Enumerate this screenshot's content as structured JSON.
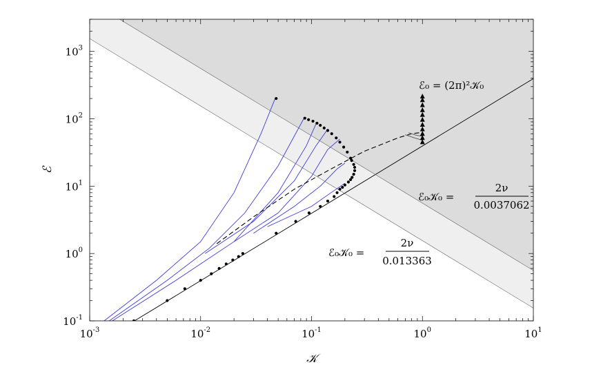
{
  "chart_data": {
    "type": "line",
    "xscale": "log",
    "yscale": "log",
    "xlim": [
      0.001,
      10
    ],
    "ylim": [
      0.1,
      3000
    ],
    "xlabel": "𝒦",
    "ylabel": "ℰ",
    "xticks": [
      {
        "value": 0.001,
        "base": "10",
        "exp": "-3"
      },
      {
        "value": 0.01,
        "base": "10",
        "exp": "-2"
      },
      {
        "value": 0.1,
        "base": "10",
        "exp": "-1"
      },
      {
        "value": 1,
        "base": "10",
        "exp": "0"
      },
      {
        "value": 10,
        "base": "10",
        "exp": "1"
      }
    ],
    "yticks": [
      {
        "value": 0.1,
        "base": "10",
        "exp": "-1"
      },
      {
        "value": 1,
        "base": "10",
        "exp": "0"
      },
      {
        "value": 10,
        "base": "10",
        "exp": "1"
      },
      {
        "value": 100,
        "base": "10",
        "exp": "2"
      },
      {
        "value": 1000,
        "base": "10",
        "exp": "3"
      }
    ],
    "reference_lines": [
      {
        "name": "E0 = (2pi)^2 K0",
        "slope": 1,
        "coef": 39.478
      },
      {
        "name": "E0 K0 = 2nu/0.013363",
        "slope": -1,
        "coef": 1.55
      },
      {
        "name": "E0 K0 = 2nu/0.0037062",
        "slope": -1,
        "coef": 5.59
      }
    ],
    "annotations": {
      "line_label": "ℰ₀ = (2π)²𝒦₀",
      "upper_bound": {
        "lhs": "ℰ₀𝒦₀ =",
        "num": "2ν",
        "den": "0.0037062"
      },
      "lower_bound": {
        "lhs": "ℰ₀𝒦₀ =",
        "num": "2ν",
        "den": "0.013363"
      }
    },
    "series": [
      {
        "name": "blue-trajectory-1",
        "color": "#3b3bdd",
        "points": [
          [
            0.00135,
            0.1
          ],
          [
            0.004,
            0.4
          ],
          [
            0.01,
            1.5
          ],
          [
            0.02,
            8
          ],
          [
            0.035,
            60
          ],
          [
            0.047,
            200
          ]
        ]
      },
      {
        "name": "blue-trajectory-2",
        "color": "#3b3bdd",
        "points": [
          [
            0.0015,
            0.1
          ],
          [
            0.005,
            0.4
          ],
          [
            0.012,
            1.2
          ],
          [
            0.025,
            4
          ],
          [
            0.05,
            20
          ],
          [
            0.085,
            100
          ]
        ]
      },
      {
        "name": "blue-trajectory-3",
        "color": "#3b3bdd",
        "points": [
          [
            0.0016,
            0.1
          ],
          [
            0.006,
            0.4
          ],
          [
            0.02,
            1.5
          ],
          [
            0.05,
            8
          ],
          [
            0.09,
            40
          ],
          [
            0.11,
            85
          ]
        ]
      },
      {
        "name": "blue-trajectory-4",
        "color": "#3b3bdd",
        "points": [
          [
            0.011,
            1.0
          ],
          [
            0.03,
            3
          ],
          [
            0.07,
            12
          ],
          [
            0.11,
            40
          ],
          [
            0.14,
            70
          ]
        ]
      },
      {
        "name": "blue-trajectory-5",
        "color": "#3b3bdd",
        "points": [
          [
            0.02,
            1.5
          ],
          [
            0.05,
            4
          ],
          [
            0.1,
            14
          ],
          [
            0.14,
            35
          ],
          [
            0.18,
            50
          ]
        ]
      },
      {
        "name": "blue-trajectory-6",
        "color": "#3b3bdd",
        "points": [
          [
            0.03,
            2
          ],
          [
            0.07,
            5
          ],
          [
            0.12,
            10
          ],
          [
            0.17,
            18
          ],
          [
            0.2,
            22
          ]
        ]
      },
      {
        "name": "blue-trajectory-7",
        "color": "#3b3bdd",
        "points": [
          [
            0.04,
            2.5
          ],
          [
            0.1,
            5
          ],
          [
            0.15,
            8
          ],
          [
            0.2,
            11
          ]
        ]
      },
      {
        "name": "dashed-fit",
        "color": "#000000",
        "dashed": true,
        "points": [
          [
            0.014,
            1.4
          ],
          [
            0.03,
            3.5
          ],
          [
            0.07,
            9
          ],
          [
            0.15,
            18
          ],
          [
            0.3,
            33
          ],
          [
            0.6,
            52
          ],
          [
            0.8,
            60
          ],
          [
            1.0,
            63
          ]
        ]
      },
      {
        "name": "gray-near-one",
        "color": "#555555",
        "points": [
          [
            0.7,
            58
          ],
          [
            0.85,
            52
          ],
          [
            1.0,
            48
          ]
        ]
      },
      {
        "name": "gray-near-one-b",
        "color": "#555555",
        "points": [
          [
            0.75,
            62
          ],
          [
            0.88,
            57
          ],
          [
            1.0,
            55
          ]
        ]
      }
    ],
    "dots_lower": [
      [
        0.0025,
        0.1
      ],
      [
        0.005,
        0.2
      ],
      [
        0.0072,
        0.3
      ],
      [
        0.01,
        0.4
      ],
      [
        0.0125,
        0.5
      ],
      [
        0.0147,
        0.6
      ],
      [
        0.017,
        0.7
      ],
      [
        0.0195,
        0.8
      ],
      [
        0.022,
        0.9
      ],
      [
        0.024,
        1.0
      ],
      [
        0.048,
        2.0
      ],
      [
        0.072,
        3.0
      ],
      [
        0.095,
        4.0
      ],
      [
        0.12,
        5.0
      ],
      [
        0.14,
        6.0
      ],
      [
        0.16,
        7.0
      ],
      [
        0.17,
        8.0
      ],
      [
        0.18,
        9.0
      ],
      [
        0.19,
        9.6
      ]
    ],
    "dots_upper": [
      [
        0.048,
        200
      ],
      [
        0.087,
        102
      ],
      [
        0.094,
        97
      ],
      [
        0.103,
        92
      ],
      [
        0.112,
        86
      ],
      [
        0.12,
        80
      ],
      [
        0.13,
        73
      ],
      [
        0.14,
        67
      ],
      [
        0.152,
        60
      ],
      [
        0.167,
        52
      ],
      [
        0.18,
        45
      ],
      [
        0.195,
        38
      ],
      [
        0.21,
        32
      ],
      [
        0.225,
        26
      ]
    ],
    "dots_cusp": [
      [
        0.23,
        24
      ],
      [
        0.24,
        21
      ],
      [
        0.245,
        19
      ],
      [
        0.245,
        17
      ],
      [
        0.24,
        15
      ],
      [
        0.232,
        13.5
      ],
      [
        0.225,
        12.5
      ],
      [
        0.215,
        11.5
      ],
      [
        0.2,
        10.4
      ]
    ],
    "triangles": [
      [
        1,
        45
      ],
      [
        1,
        52
      ],
      [
        1,
        60
      ],
      [
        1,
        70
      ],
      [
        1,
        82
      ],
      [
        1,
        97
      ],
      [
        1,
        115
      ],
      [
        1,
        135
      ],
      [
        1,
        160
      ],
      [
        1,
        190
      ],
      [
        1,
        215
      ]
    ]
  }
}
